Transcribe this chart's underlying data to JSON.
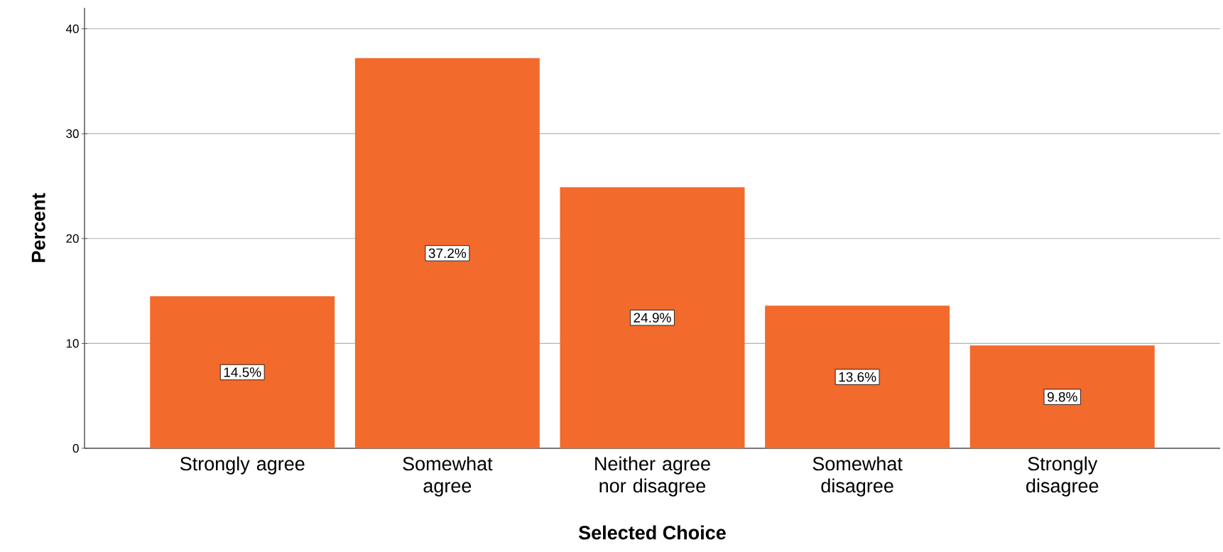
{
  "chart_data": {
    "type": "bar",
    "xlabel": "Selected Choice",
    "ylabel": "Percent",
    "categories": [
      "Strongly agree",
      "Somewhat agree",
      "Neither agree nor disagree",
      "Somewhat disagree",
      "Strongly disagree"
    ],
    "values": [
      14.5,
      37.2,
      24.9,
      13.6,
      9.8
    ],
    "value_labels": [
      "14.5%",
      "37.2%",
      "24.9%",
      "13.6%",
      "9.8%"
    ],
    "color": "#f26a2c",
    "ylim": [
      0,
      42
    ],
    "yticks": [
      0,
      10,
      20,
      30,
      40
    ],
    "grid": "y"
  }
}
